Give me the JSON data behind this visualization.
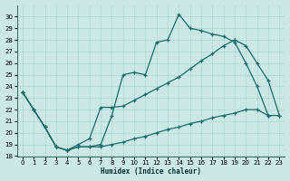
{
  "xlabel": "Humidex (Indice chaleur)",
  "bg_color": "#cce8e4",
  "grid_color": "#b0d8d0",
  "line_color": "#1a6b6b",
  "xlim": [
    -0.5,
    23.5
  ],
  "ylim": [
    18,
    31
  ],
  "xticks": [
    0,
    1,
    2,
    3,
    4,
    5,
    6,
    7,
    8,
    9,
    10,
    11,
    12,
    13,
    14,
    15,
    16,
    17,
    18,
    19,
    20,
    21,
    22,
    23
  ],
  "yticks": [
    18,
    19,
    20,
    21,
    22,
    23,
    24,
    25,
    26,
    27,
    28,
    29,
    30
  ],
  "line_a_x": [
    0,
    1,
    2,
    3,
    4,
    5,
    6,
    7,
    8,
    9,
    10,
    11,
    12,
    13,
    14,
    15,
    16,
    17,
    18,
    19,
    20,
    21,
    22
  ],
  "line_a_y": [
    23.5,
    22.0,
    20.5,
    18.8,
    18.5,
    18.8,
    18.8,
    19.0,
    21.5,
    25.0,
    25.2,
    25.0,
    27.8,
    28.0,
    30.2,
    29.0,
    28.8,
    28.5,
    28.3,
    27.8,
    26.0,
    24.0,
    21.5
  ],
  "line_b_x": [
    0,
    1,
    2,
    3,
    4,
    5,
    6,
    7,
    8,
    9,
    10,
    11,
    12,
    13,
    14,
    15,
    16,
    17,
    18,
    19,
    20,
    21,
    22,
    23
  ],
  "line_b_y": [
    23.5,
    22.0,
    20.5,
    18.8,
    18.5,
    19.0,
    19.5,
    22.2,
    22.2,
    22.3,
    22.8,
    23.3,
    23.8,
    24.3,
    24.8,
    25.5,
    26.2,
    26.8,
    27.5,
    28.0,
    27.5,
    26.0,
    24.5,
    21.5
  ],
  "line_c_x": [
    0,
    1,
    2,
    3,
    4,
    5,
    6,
    7,
    8,
    9,
    10,
    11,
    12,
    13,
    14,
    15,
    16,
    17,
    18,
    19,
    20,
    21,
    22,
    23
  ],
  "line_c_y": [
    23.5,
    22.0,
    20.5,
    18.8,
    18.5,
    18.8,
    18.8,
    18.8,
    19.0,
    19.2,
    19.5,
    19.7,
    20.0,
    20.3,
    20.5,
    20.8,
    21.0,
    21.3,
    21.5,
    21.7,
    22.0,
    22.0,
    21.5,
    21.5
  ]
}
